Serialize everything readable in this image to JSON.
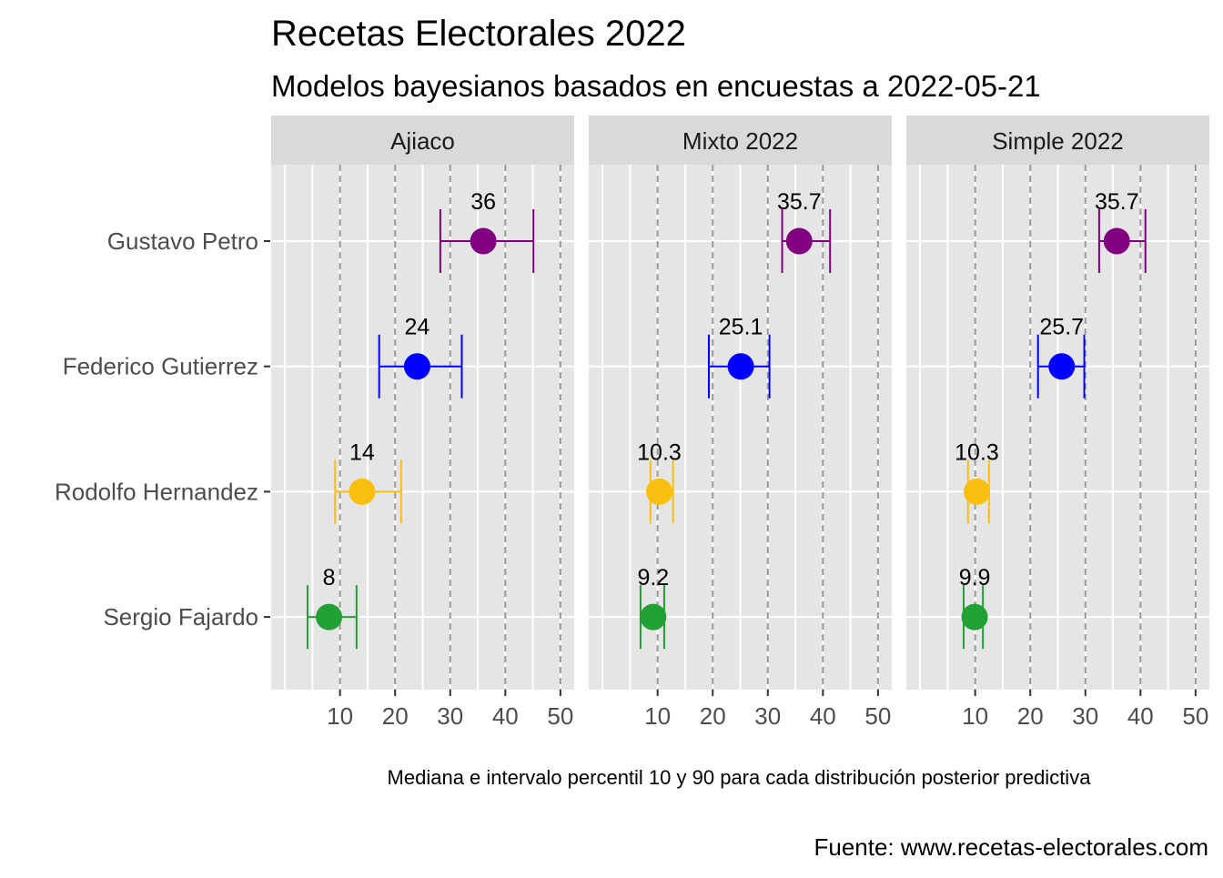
{
  "chart_data": {
    "type": "dot-errorbar-facet",
    "title": "Recetas Electorales 2022",
    "subtitle": "Modelos bayesianos basados en encuestas a 2022-05-21",
    "caption": "Mediana e intervalo percentil 10 y 90 para cada distribución posterior predictiva",
    "source": "Fuente: www.recetas-electorales.com",
    "xlim": [
      -2.5,
      52.5
    ],
    "x_ticks": [
      10,
      20,
      30,
      40,
      50
    ],
    "x_tick_labels": [
      "10",
      "20",
      "30",
      "40",
      "50"
    ],
    "grid": true,
    "candidates": [
      "Gustavo Petro",
      "Federico Gutierrez",
      "Rodolfo Hernandez",
      "Sergio Fajardo"
    ],
    "colors": {
      "Gustavo Petro": "#800080",
      "Federico Gutierrez": "#0000ff",
      "Rodolfo Hernandez": "#f8be10",
      "Sergio Fajardo": "#21a033"
    },
    "panels": [
      {
        "name": "Ajiaco",
        "points": [
          {
            "candidate": "Gustavo Petro",
            "median": 36,
            "p10": 28.2,
            "p90": 45.1,
            "label": "36"
          },
          {
            "candidate": "Federico Gutierrez",
            "median": 24,
            "p10": 17.1,
            "p90": 32.1,
            "label": "24"
          },
          {
            "candidate": "Rodolfo Hernandez",
            "median": 14,
            "p10": 9.1,
            "p90": 21.1,
            "label": "14"
          },
          {
            "candidate": "Sergio Fajardo",
            "median": 8,
            "p10": 4.1,
            "p90": 13.0,
            "label": "8"
          }
        ]
      },
      {
        "name": "Mixto 2022",
        "points": [
          {
            "candidate": "Gustavo Petro",
            "median": 35.7,
            "p10": 32.6,
            "p90": 41.3,
            "label": "35.7"
          },
          {
            "candidate": "Federico Gutierrez",
            "median": 25.1,
            "p10": 19.3,
            "p90": 30.3,
            "label": "25.1"
          },
          {
            "candidate": "Rodolfo Hernandez",
            "median": 10.3,
            "p10": 8.7,
            "p90": 12.8,
            "label": "10.3"
          },
          {
            "candidate": "Sergio Fajardo",
            "median": 9.2,
            "p10": 6.9,
            "p90": 11.2,
            "label": "9.2"
          }
        ]
      },
      {
        "name": "Simple 2022",
        "points": [
          {
            "candidate": "Gustavo Petro",
            "median": 35.7,
            "p10": 32.5,
            "p90": 40.9,
            "label": "35.7"
          },
          {
            "candidate": "Federico Gutierrez",
            "median": 25.7,
            "p10": 21.4,
            "p90": 29.8,
            "label": "25.7"
          },
          {
            "candidate": "Rodolfo Hernandez",
            "median": 10.3,
            "p10": 8.7,
            "p90": 12.5,
            "label": "10.3"
          },
          {
            "candidate": "Sergio Fajardo",
            "median": 9.9,
            "p10": 7.9,
            "p90": 11.4,
            "label": "9.9"
          }
        ]
      }
    ]
  }
}
